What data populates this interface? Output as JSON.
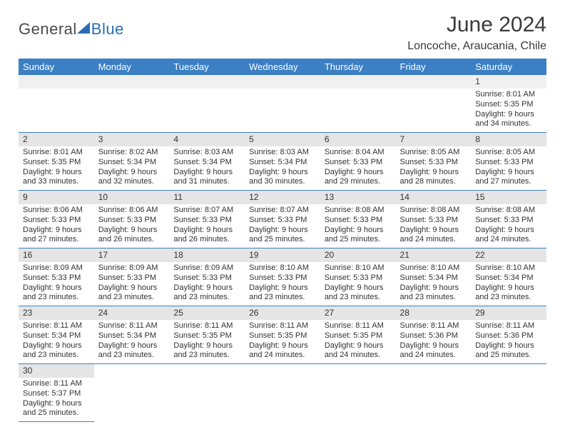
{
  "logo": {
    "text1": "General",
    "text2": "Blue"
  },
  "header": {
    "month": "June 2024",
    "location": "Loncoche, Araucania, Chile"
  },
  "colors": {
    "header_bg": "#3b7fc4",
    "header_text": "#ffffff",
    "daynum_bg": "#e5e5e5",
    "border": "#3b7fc4"
  },
  "weekdays": [
    "Sunday",
    "Monday",
    "Tuesday",
    "Wednesday",
    "Thursday",
    "Friday",
    "Saturday"
  ],
  "weeks": [
    [
      null,
      null,
      null,
      null,
      null,
      null,
      {
        "n": "1",
        "sr": "Sunrise: 8:01 AM",
        "ss": "Sunset: 5:35 PM",
        "d1": "Daylight: 9 hours",
        "d2": "and 34 minutes."
      }
    ],
    [
      {
        "n": "2",
        "sr": "Sunrise: 8:01 AM",
        "ss": "Sunset: 5:35 PM",
        "d1": "Daylight: 9 hours",
        "d2": "and 33 minutes."
      },
      {
        "n": "3",
        "sr": "Sunrise: 8:02 AM",
        "ss": "Sunset: 5:34 PM",
        "d1": "Daylight: 9 hours",
        "d2": "and 32 minutes."
      },
      {
        "n": "4",
        "sr": "Sunrise: 8:03 AM",
        "ss": "Sunset: 5:34 PM",
        "d1": "Daylight: 9 hours",
        "d2": "and 31 minutes."
      },
      {
        "n": "5",
        "sr": "Sunrise: 8:03 AM",
        "ss": "Sunset: 5:34 PM",
        "d1": "Daylight: 9 hours",
        "d2": "and 30 minutes."
      },
      {
        "n": "6",
        "sr": "Sunrise: 8:04 AM",
        "ss": "Sunset: 5:33 PM",
        "d1": "Daylight: 9 hours",
        "d2": "and 29 minutes."
      },
      {
        "n": "7",
        "sr": "Sunrise: 8:05 AM",
        "ss": "Sunset: 5:33 PM",
        "d1": "Daylight: 9 hours",
        "d2": "and 28 minutes."
      },
      {
        "n": "8",
        "sr": "Sunrise: 8:05 AM",
        "ss": "Sunset: 5:33 PM",
        "d1": "Daylight: 9 hours",
        "d2": "and 27 minutes."
      }
    ],
    [
      {
        "n": "9",
        "sr": "Sunrise: 8:06 AM",
        "ss": "Sunset: 5:33 PM",
        "d1": "Daylight: 9 hours",
        "d2": "and 27 minutes."
      },
      {
        "n": "10",
        "sr": "Sunrise: 8:06 AM",
        "ss": "Sunset: 5:33 PM",
        "d1": "Daylight: 9 hours",
        "d2": "and 26 minutes."
      },
      {
        "n": "11",
        "sr": "Sunrise: 8:07 AM",
        "ss": "Sunset: 5:33 PM",
        "d1": "Daylight: 9 hours",
        "d2": "and 26 minutes."
      },
      {
        "n": "12",
        "sr": "Sunrise: 8:07 AM",
        "ss": "Sunset: 5:33 PM",
        "d1": "Daylight: 9 hours",
        "d2": "and 25 minutes."
      },
      {
        "n": "13",
        "sr": "Sunrise: 8:08 AM",
        "ss": "Sunset: 5:33 PM",
        "d1": "Daylight: 9 hours",
        "d2": "and 25 minutes."
      },
      {
        "n": "14",
        "sr": "Sunrise: 8:08 AM",
        "ss": "Sunset: 5:33 PM",
        "d1": "Daylight: 9 hours",
        "d2": "and 24 minutes."
      },
      {
        "n": "15",
        "sr": "Sunrise: 8:08 AM",
        "ss": "Sunset: 5:33 PM",
        "d1": "Daylight: 9 hours",
        "d2": "and 24 minutes."
      }
    ],
    [
      {
        "n": "16",
        "sr": "Sunrise: 8:09 AM",
        "ss": "Sunset: 5:33 PM",
        "d1": "Daylight: 9 hours",
        "d2": "and 23 minutes."
      },
      {
        "n": "17",
        "sr": "Sunrise: 8:09 AM",
        "ss": "Sunset: 5:33 PM",
        "d1": "Daylight: 9 hours",
        "d2": "and 23 minutes."
      },
      {
        "n": "18",
        "sr": "Sunrise: 8:09 AM",
        "ss": "Sunset: 5:33 PM",
        "d1": "Daylight: 9 hours",
        "d2": "and 23 minutes."
      },
      {
        "n": "19",
        "sr": "Sunrise: 8:10 AM",
        "ss": "Sunset: 5:33 PM",
        "d1": "Daylight: 9 hours",
        "d2": "and 23 minutes."
      },
      {
        "n": "20",
        "sr": "Sunrise: 8:10 AM",
        "ss": "Sunset: 5:33 PM",
        "d1": "Daylight: 9 hours",
        "d2": "and 23 minutes."
      },
      {
        "n": "21",
        "sr": "Sunrise: 8:10 AM",
        "ss": "Sunset: 5:34 PM",
        "d1": "Daylight: 9 hours",
        "d2": "and 23 minutes."
      },
      {
        "n": "22",
        "sr": "Sunrise: 8:10 AM",
        "ss": "Sunset: 5:34 PM",
        "d1": "Daylight: 9 hours",
        "d2": "and 23 minutes."
      }
    ],
    [
      {
        "n": "23",
        "sr": "Sunrise: 8:11 AM",
        "ss": "Sunset: 5:34 PM",
        "d1": "Daylight: 9 hours",
        "d2": "and 23 minutes."
      },
      {
        "n": "24",
        "sr": "Sunrise: 8:11 AM",
        "ss": "Sunset: 5:34 PM",
        "d1": "Daylight: 9 hours",
        "d2": "and 23 minutes."
      },
      {
        "n": "25",
        "sr": "Sunrise: 8:11 AM",
        "ss": "Sunset: 5:35 PM",
        "d1": "Daylight: 9 hours",
        "d2": "and 23 minutes."
      },
      {
        "n": "26",
        "sr": "Sunrise: 8:11 AM",
        "ss": "Sunset: 5:35 PM",
        "d1": "Daylight: 9 hours",
        "d2": "and 24 minutes."
      },
      {
        "n": "27",
        "sr": "Sunrise: 8:11 AM",
        "ss": "Sunset: 5:35 PM",
        "d1": "Daylight: 9 hours",
        "d2": "and 24 minutes."
      },
      {
        "n": "28",
        "sr": "Sunrise: 8:11 AM",
        "ss": "Sunset: 5:36 PM",
        "d1": "Daylight: 9 hours",
        "d2": "and 24 minutes."
      },
      {
        "n": "29",
        "sr": "Sunrise: 8:11 AM",
        "ss": "Sunset: 5:36 PM",
        "d1": "Daylight: 9 hours",
        "d2": "and 25 minutes."
      }
    ],
    [
      {
        "n": "30",
        "sr": "Sunrise: 8:11 AM",
        "ss": "Sunset: 5:37 PM",
        "d1": "Daylight: 9 hours",
        "d2": "and 25 minutes."
      },
      null,
      null,
      null,
      null,
      null,
      null
    ]
  ]
}
